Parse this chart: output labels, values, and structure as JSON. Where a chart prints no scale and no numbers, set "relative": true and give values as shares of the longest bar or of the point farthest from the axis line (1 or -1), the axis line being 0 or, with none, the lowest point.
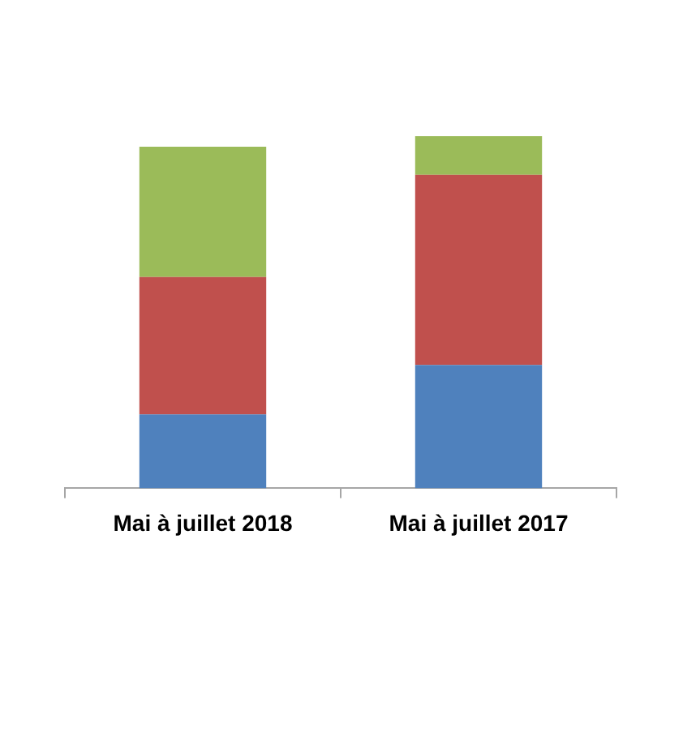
{
  "chart_data": {
    "type": "bar",
    "stacked": true,
    "relative": true,
    "categories": [
      "Mai à juillet 2018",
      "Mai à juillet 2017"
    ],
    "series": [
      {
        "color": "#4f81bd",
        "values": [
          0.21,
          0.35
        ]
      },
      {
        "color": "#c0504d",
        "values": [
          0.39,
          0.54
        ]
      },
      {
        "color": "#9bbb59",
        "values": [
          0.37,
          0.11
        ]
      }
    ]
  }
}
